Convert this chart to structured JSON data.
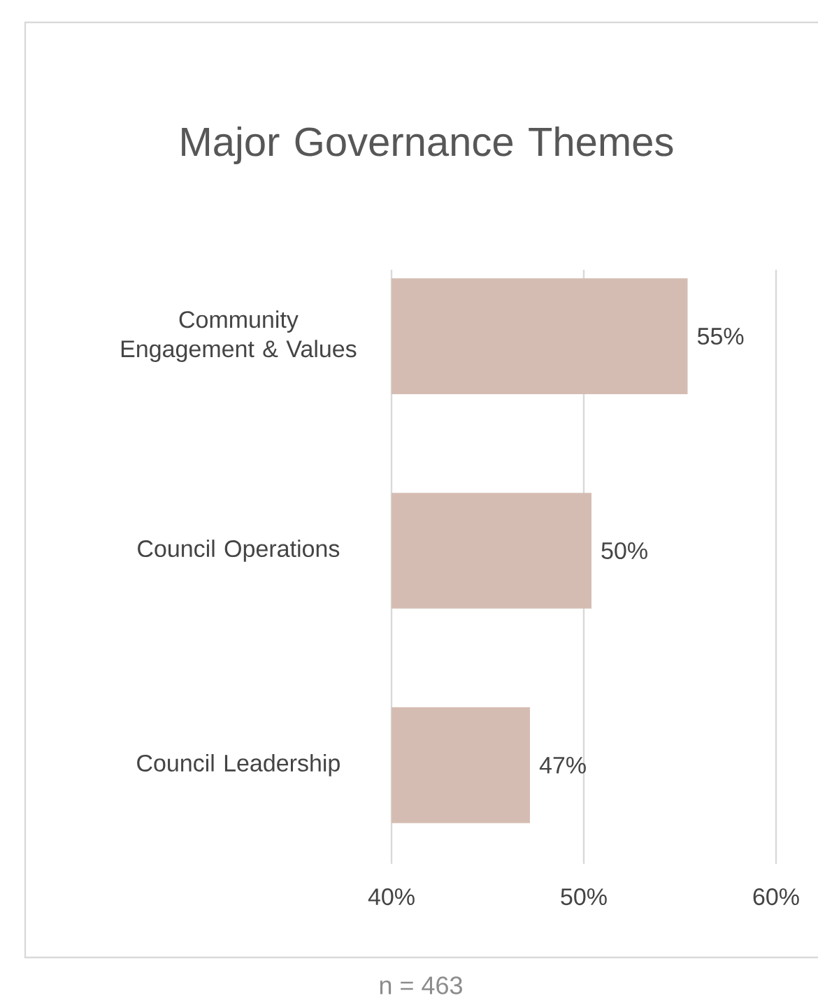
{
  "chart_data": {
    "type": "bar",
    "orientation": "horizontal",
    "title": "Major Governance Themes",
    "categories": [
      "Community Engagement & Values",
      "Council Operations",
      "Council Leadership"
    ],
    "values": [
      55.4,
      50.4,
      47.2
    ],
    "value_labels": [
      "55%",
      "50%",
      "47%"
    ],
    "color": "#d5bcb2",
    "xlim": [
      40,
      60
    ],
    "xticks": [
      {
        "value": 40,
        "label": "40%"
      },
      {
        "value": 50,
        "label": "50%"
      },
      {
        "value": 60,
        "label": "60%"
      }
    ],
    "grid": "x",
    "annotations": [
      "n = 463"
    ]
  }
}
